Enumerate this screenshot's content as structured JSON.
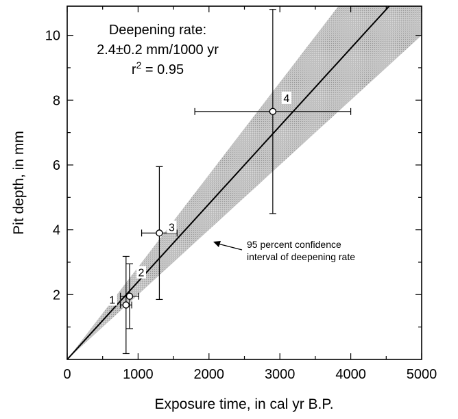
{
  "chart_data": {
    "type": "scatter",
    "xlabel": "Exposure time, in cal yr B.P.",
    "ylabel": "Pit depth, in mm",
    "xlim": [
      0,
      5000
    ],
    "ylim": [
      0,
      10.9
    ],
    "xticks": [
      0,
      1000,
      2000,
      3000,
      4000,
      5000
    ],
    "yticks": [
      2,
      4,
      6,
      8,
      10
    ],
    "grid": false,
    "points": [
      {
        "label": "1",
        "x": 830,
        "y": 1.68,
        "xerr": 80,
        "yerr": 1.5
      },
      {
        "label": "2",
        "x": 880,
        "y": 1.95,
        "xerr": 130,
        "yerr": 1.0
      },
      {
        "label": "3",
        "x": 1300,
        "y": 3.9,
        "xerr": 250,
        "yerr": 2.05
      },
      {
        "label": "4",
        "x": 2900,
        "y": 7.65,
        "xerr": 1100,
        "yerr": 3.15
      }
    ],
    "fit_line": {
      "slope_per_1000yr": 2.4,
      "intercept": 0
    },
    "confidence_band": {
      "lower_slope_per_1000yr": 2.0,
      "upper_slope_per_1000yr": 2.85
    },
    "annotations": {
      "rate_title": "Deepening rate:",
      "rate_value": "2.4±0.2 mm/1000 yr",
      "r2_prefix": "r",
      "r2_exp": "2",
      "r2_suffix": " = 0.95",
      "band_note_line1": "95 percent confidence",
      "band_note_line2": "interval of deepening rate"
    },
    "colors": {
      "band": "#bdbdbd",
      "line": "#000000",
      "marker": "#000000"
    }
  }
}
